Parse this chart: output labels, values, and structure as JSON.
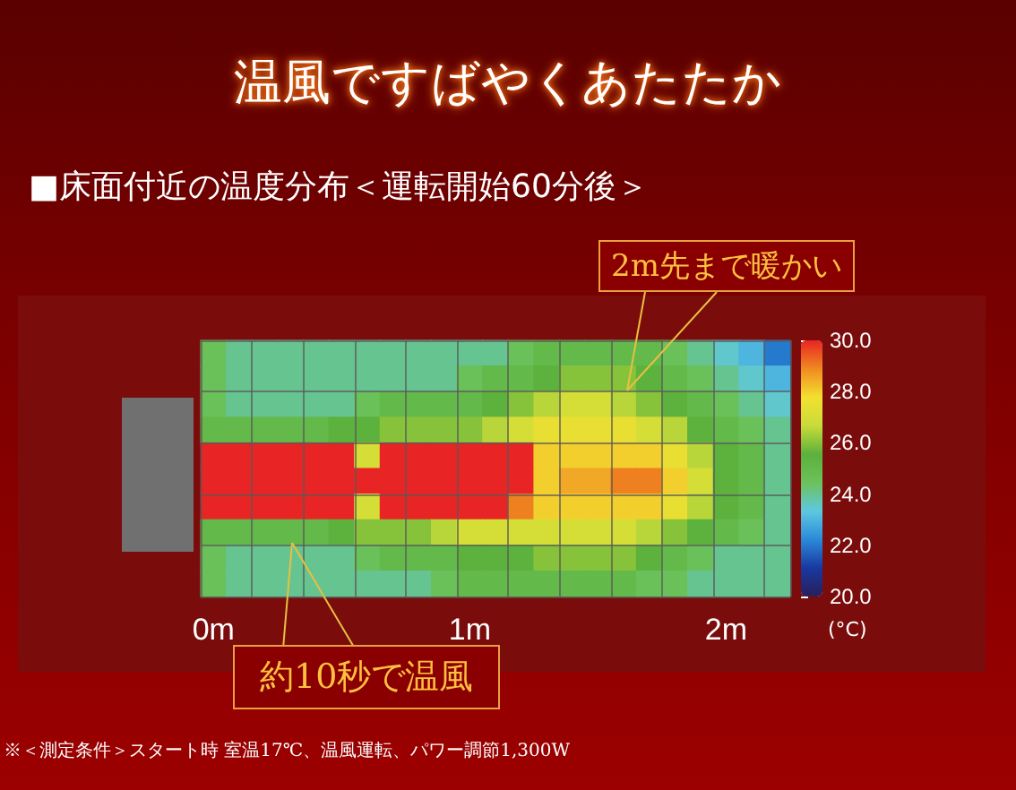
{
  "chart_data": {
    "type": "heatmap",
    "title": "温風ですばやくあたたか",
    "subtitle": "■床面付近の温度分布＜運転開始60分後＞",
    "clabel": "(°C)",
    "annotations": [
      "2m先まで暖かい",
      "約10秒で温風",
      "※＜測定条件＞スタート時 室温17℃、温風運転、パワー調節1,300W"
    ],
    "categories": [
      "0m",
      null,
      null,
      null,
      null,
      null,
      null,
      null,
      null,
      null,
      "1m",
      null,
      null,
      null,
      null,
      null,
      null,
      null,
      null,
      null,
      "2m",
      null,
      null
    ],
    "y_categories": [
      null,
      null,
      null,
      null,
      null,
      null,
      null,
      null,
      null,
      null
    ],
    "cells": [
      [
        24.5,
        24,
        24,
        24,
        24,
        24,
        24,
        24,
        24,
        24,
        24,
        24,
        24.5,
        25,
        25,
        25,
        25,
        25,
        24.5,
        24,
        23.5,
        23,
        22
      ],
      [
        24.5,
        24,
        24,
        24,
        24,
        24,
        24,
        24,
        24,
        24,
        24.5,
        25,
        25,
        25.5,
        26,
        26,
        26,
        25.5,
        25,
        24.5,
        24,
        23.5,
        23
      ],
      [
        24.5,
        24,
        24,
        24,
        24,
        24,
        24.5,
        25,
        25,
        25,
        25,
        25.5,
        26,
        26.5,
        27,
        27,
        26.5,
        26,
        25.5,
        25,
        24.5,
        24,
        23.5
      ],
      [
        25,
        25,
        25,
        25,
        25,
        25.5,
        25.5,
        26,
        26,
        26,
        26,
        26.5,
        27,
        27.5,
        27.5,
        27.5,
        27.5,
        27,
        26.5,
        25.5,
        25,
        24.5,
        24
      ],
      [
        30,
        30,
        30,
        30,
        30,
        30,
        27,
        30,
        30,
        30,
        30,
        30,
        30,
        28,
        28,
        28,
        28,
        28,
        27.5,
        26.5,
        25.5,
        25,
        24
      ],
      [
        30,
        30,
        30,
        30,
        30,
        30,
        30,
        30,
        30,
        30,
        30,
        30,
        30,
        28,
        28.5,
        28.5,
        29,
        29,
        28,
        27,
        25.5,
        25,
        24
      ],
      [
        30,
        30,
        30,
        30,
        30,
        30,
        27,
        30,
        30,
        30,
        30,
        30,
        29,
        28,
        28,
        28,
        28,
        28,
        27.5,
        26.5,
        25.5,
        25,
        24
      ],
      [
        25,
        25,
        25,
        25,
        25,
        25.5,
        26,
        26,
        26,
        26.5,
        27,
        27,
        27,
        27,
        27,
        27,
        27,
        26.5,
        26,
        25.5,
        25,
        24.5,
        24
      ],
      [
        24.5,
        24,
        24,
        24,
        24,
        24,
        24.5,
        25,
        25,
        25,
        25.5,
        25.5,
        25.5,
        26,
        26,
        26,
        26,
        25.5,
        25,
        24.5,
        24,
        24,
        24
      ],
      [
        24.5,
        24,
        24,
        24,
        24,
        24,
        24,
        24,
        24,
        24.5,
        25,
        25,
        25,
        25,
        25,
        25,
        25,
        24.5,
        24.5,
        24,
        24,
        24,
        24
      ]
    ],
    "clim": [
      20,
      30
    ],
    "cticks": [
      {
        "value": 20,
        "label": "20.0"
      },
      {
        "value": 22,
        "label": "22.0"
      },
      {
        "value": 24,
        "label": "24.0"
      },
      {
        "value": 26,
        "label": "26.0"
      },
      {
        "value": 28,
        "label": "28.0"
      },
      {
        "value": 30,
        "label": "30.0"
      }
    ],
    "tick_labels": "x",
    "grid": true
  }
}
